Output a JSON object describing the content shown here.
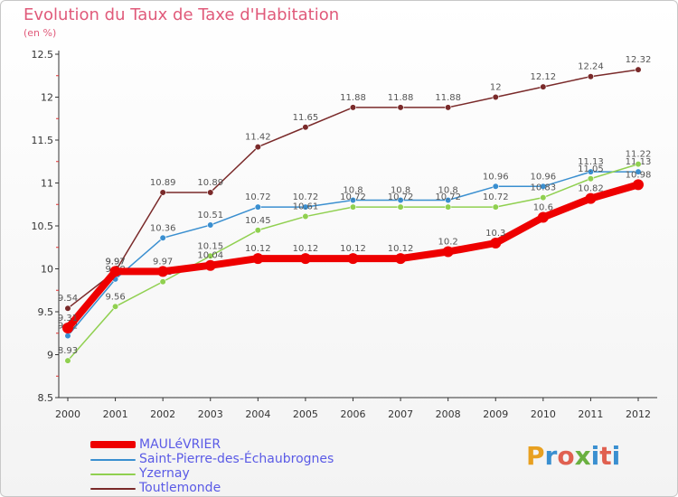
{
  "header": {
    "title": "Evolution du Taux de Taxe d'Habitation",
    "subtitle": "(en %)"
  },
  "logo": {
    "text": "Proxiti",
    "colors": [
      "#e8a020",
      "#3a8fd0",
      "#e06050",
      "#6ab040",
      "#3a8fd0",
      "#e06050",
      "#3a8fd0"
    ]
  },
  "chart_data": {
    "type": "line",
    "x": [
      "2000",
      "2001",
      "2002",
      "2003",
      "2004",
      "2005",
      "2006",
      "2007",
      "2008",
      "2009",
      "2010",
      "2011",
      "2012"
    ],
    "ylim": [
      8.5,
      12.5
    ],
    "yticks": [
      "8.5",
      "9",
      "9.5",
      "10",
      "10.5",
      "11",
      "11.5",
      "12",
      "12.5"
    ],
    "grid": false,
    "legend_position": "bottom-left",
    "series": [
      {
        "name": "Toutlemonde",
        "color": "#7a2a2a",
        "values": [
          9.54,
          9.97,
          10.89,
          10.89,
          11.42,
          11.65,
          11.88,
          11.88,
          11.88,
          12,
          12.12,
          12.24,
          12.32
        ],
        "labels": [
          "9.54",
          "9.97",
          "10.89",
          "10.89",
          "11.42",
          "11.65",
          "11.88",
          "11.88",
          "11.88",
          "12",
          "12.12",
          "12.24",
          "12.32"
        ]
      },
      {
        "name": "Saint-Pierre-des-Échaubrognes",
        "color": "#3a8fd0",
        "values": [
          9.22,
          9.88,
          10.36,
          10.51,
          10.72,
          10.72,
          10.8,
          10.8,
          10.8,
          10.96,
          10.96,
          11.13,
          11.13
        ],
        "labels": [
          "9.22",
          "9.88",
          "10.36",
          "10.51",
          "10.72",
          "10.72",
          "10.8",
          "10.8",
          "10.8",
          "10.96",
          "10.96",
          "11.13",
          "11.13"
        ]
      },
      {
        "name": "Yzernay",
        "color": "#90d050",
        "values": [
          8.93,
          9.56,
          9.85,
          10.15,
          10.45,
          10.61,
          10.72,
          10.72,
          10.72,
          10.72,
          10.83,
          11.05,
          11.22
        ],
        "labels": [
          "8.93",
          "9.56",
          "9.85",
          "10.15",
          "10.45",
          "10.61",
          "10.72",
          "10.72",
          "10.72",
          "10.72",
          "10.83",
          "11.05",
          "11.22"
        ]
      },
      {
        "name": "MAULéVRIER",
        "color": "#ee0000",
        "values": [
          9.31,
          9.97,
          9.97,
          10.04,
          10.12,
          10.12,
          10.12,
          10.12,
          10.2,
          10.3,
          10.6,
          10.82,
          10.98
        ],
        "labels": [
          "9.31",
          "9.97",
          "9.97",
          "10.04",
          "10.12",
          "10.12",
          "10.12",
          "10.12",
          "10.2",
          "10.3",
          "10.6",
          "10.82",
          "10.98"
        ]
      }
    ]
  },
  "legend": [
    {
      "name": "MAULéVRIER",
      "color": "#ee0000",
      "thick": true
    },
    {
      "name": "Saint-Pierre-des-Échaubrognes",
      "color": "#3a8fd0",
      "thick": false
    },
    {
      "name": "Yzernay",
      "color": "#90d050",
      "thick": false
    },
    {
      "name": "Toutlemonde",
      "color": "#7a2a2a",
      "thick": false
    }
  ]
}
